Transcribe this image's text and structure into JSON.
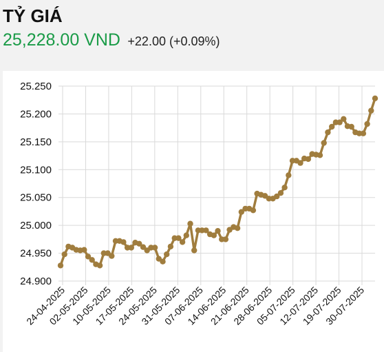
{
  "header": {
    "title": "TỶ GIÁ",
    "price": "25,228.00 VND",
    "change": "+22.00 (+0.09%)"
  },
  "colors": {
    "price": "#1a9b47",
    "line": "#a07d3e",
    "grid": "#d9d9d9",
    "background": "#f2f2f2"
  },
  "chart_data": {
    "type": "line",
    "title": "",
    "xlabel": "",
    "ylabel": "",
    "ylim": [
      24900,
      25250
    ],
    "y_ticks": [
      24900,
      24950,
      25000,
      25050,
      25100,
      25150,
      25200,
      25250
    ],
    "y_tick_labels": [
      "24.900",
      "24.950",
      "25.000",
      "25.050",
      "25.100",
      "25.150",
      "25.200",
      "25.250"
    ],
    "x_tick_labels": [
      "24-04-2025",
      "02-05-2025",
      "10-05-2025",
      "17-05-2025",
      "24-05-2025",
      "31-05-2025",
      "07-06-2025",
      "14-06-2025",
      "21-06-2025",
      "28-06-2025",
      "05-07-2025",
      "12-07-2025",
      "19-07-2025",
      "30-07-2025"
    ],
    "grid": true,
    "series": [
      {
        "values": [
          24928,
          24948,
          24962,
          24960,
          24956,
          24955,
          24956,
          24944,
          24938,
          24930,
          24928,
          24950,
          24950,
          24945,
          24972,
          24972,
          24970,
          24960,
          24960,
          24969,
          24967,
          24961,
          24955,
          24960,
          24960,
          24940,
          24935,
          24948,
          24962,
          24977,
          24977,
          24970,
          24982,
          25003,
          24955,
          24991,
          24991,
          24991,
          24984,
          24982,
          24990,
          24975,
          24975,
          24992,
          24997,
          24995,
          25024,
          25030,
          25030,
          25027,
          25057,
          25055,
          25053,
          25048,
          25048,
          25052,
          25058,
          25068,
          25090,
          25116,
          25116,
          25112,
          25120,
          25119,
          25128,
          25127,
          25126,
          25148,
          25167,
          25177,
          25185,
          25185,
          25191,
          25178,
          25177,
          25167,
          25165,
          25165,
          25182,
          25206,
          25228
        ]
      }
    ]
  }
}
